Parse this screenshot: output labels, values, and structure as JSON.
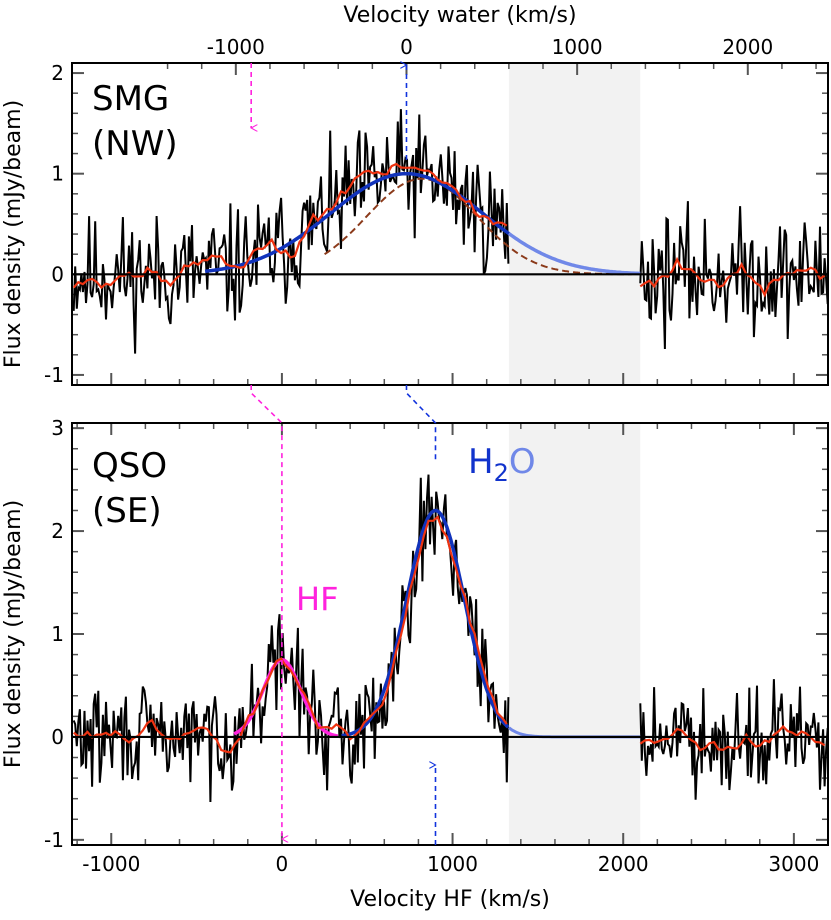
{
  "chart_data": [
    {
      "type": "line",
      "panel": "top",
      "title": "SMG (NW)",
      "label_lines": [
        "SMG",
        "(NW)"
      ],
      "top_axis_label": "Velocity water (km/s)",
      "top_ticks": [
        -1000,
        0,
        1000,
        2000
      ],
      "top_tick_labels": [
        "-1000",
        "0",
        "1000",
        "2000"
      ],
      "ylabel": "Flux density (mJy/beam)",
      "ylim": [
        -1.1,
        2.1
      ],
      "yticks": [
        -1,
        0,
        1,
        2
      ],
      "ytick_labels": [
        "-1",
        "0",
        "1",
        "2"
      ],
      "shaded_band_hf_kms": [
        1330,
        2100
      ],
      "hf_line_velocity_hf": -180,
      "h2o_line_velocity_hf": 730,
      "series": [
        {
          "name": "spectrum",
          "color": "#000000",
          "segments": [
            [
              -1220,
              1330
            ],
            [
              2100,
              3200
            ]
          ],
          "amplitude": 0.36,
          "seed": 11
        },
        {
          "name": "smoothed",
          "color": "#ee3311"
        },
        {
          "name": "H2O gaussian fit",
          "color": "#1133bb",
          "faded_color": "#7088e8",
          "amplitude": 1.0,
          "center_hf": 730,
          "fwhm": 1050
        },
        {
          "name": "component",
          "color": "#8b3a1a",
          "amplitude": 0.95,
          "center_hf": 820,
          "fwhm": 760
        }
      ]
    },
    {
      "type": "line",
      "panel": "bottom",
      "title": "QSO (SE)",
      "label_lines": [
        "QSO",
        "(SE)"
      ],
      "xlabel": "Velocity HF (km/s)",
      "xlim": [
        -1230,
        3200
      ],
      "xticks": [
        -1000,
        0,
        1000,
        2000,
        3000
      ],
      "xtick_labels": [
        "-1000",
        "0",
        "1000",
        "2000",
        "3000"
      ],
      "ylabel": "Flux density (mJy/beam)",
      "ylim": [
        -1.05,
        3.05
      ],
      "yticks": [
        -1,
        0,
        1,
        2,
        3
      ],
      "ytick_labels": [
        "-1",
        "0",
        "1",
        "2",
        "3"
      ],
      "shaded_band_hf_kms": [
        1330,
        2100
      ],
      "hf_line_velocity_hf": 0,
      "h2o_line_velocity_hf": 900,
      "annotations": {
        "hf": "HF",
        "h2o_main": "H",
        "h2o_sub": "2",
        "h2o_tail": "O"
      },
      "series": [
        {
          "name": "spectrum",
          "color": "#000000",
          "segments": [
            [
              -1220,
              1330
            ],
            [
              2100,
              3200
            ]
          ],
          "amplitude": 0.3,
          "seed": 29
        },
        {
          "name": "smoothed",
          "color": "#ee3311"
        },
        {
          "name": "HF gaussian fit",
          "color": "#ff22dd",
          "amplitude": 0.75,
          "center_hf": 0,
          "fwhm": 260
        },
        {
          "name": "H2O gaussian fit",
          "color": "#1133bb",
          "faded_color": "#7088e8",
          "amplitude": 2.2,
          "center_hf": 900,
          "fwhm": 400
        }
      ]
    }
  ]
}
